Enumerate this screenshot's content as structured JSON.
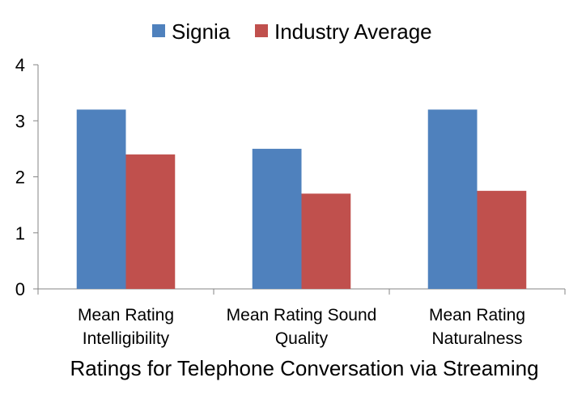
{
  "chart_data": {
    "type": "bar",
    "title": "",
    "xlabel": "Ratings for Telephone Conversation via Streaming",
    "ylabel": "",
    "ylim": [
      0,
      4
    ],
    "yticks": [
      "0",
      "1",
      "2",
      "3",
      "4"
    ],
    "categories": [
      [
        "Mean Rating",
        "Intelligibility"
      ],
      [
        "Mean Rating Sound",
        "Quality"
      ],
      [
        "Mean Rating",
        "Naturalness"
      ]
    ],
    "series": [
      {
        "name": "Signia",
        "color": "#4f81bd",
        "values": [
          3.2,
          2.5,
          3.2
        ]
      },
      {
        "name": "Industry Average",
        "color": "#c0504d",
        "values": [
          2.4,
          1.7,
          1.75
        ]
      }
    ],
    "legend_position": "top-center",
    "grid": false
  }
}
